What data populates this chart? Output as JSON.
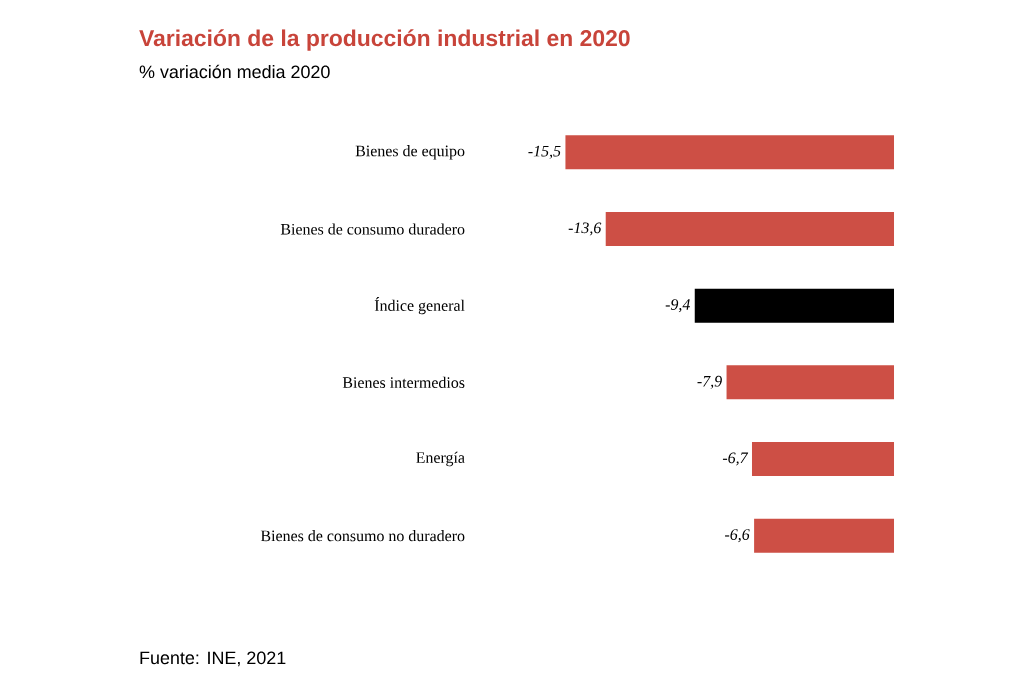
{
  "chart_data": {
    "type": "bar",
    "orientation": "horizontal",
    "title": "Variación de la producción industrial en 2020",
    "subtitle": "% variación media 2020",
    "categories": [
      "Bienes de equipo",
      "Bienes de consumo duradero",
      "Índice general",
      "Bienes intermedios",
      "Energía",
      "Bienes de consumo no duradero"
    ],
    "values": [
      -15.5,
      -13.6,
      -9.4,
      -7.9,
      -6.7,
      -6.6
    ],
    "value_labels": [
      "-15,5",
      "-13,6",
      "-9,4",
      "-7,9",
      "-6,7",
      "-6,6"
    ],
    "colors": [
      "#cd4f45",
      "#cd4f45",
      "#000000",
      "#cd4f45",
      "#cd4f45",
      "#cd4f45"
    ],
    "annotations": [
      "Fuente: INE, 2021"
    ]
  }
}
